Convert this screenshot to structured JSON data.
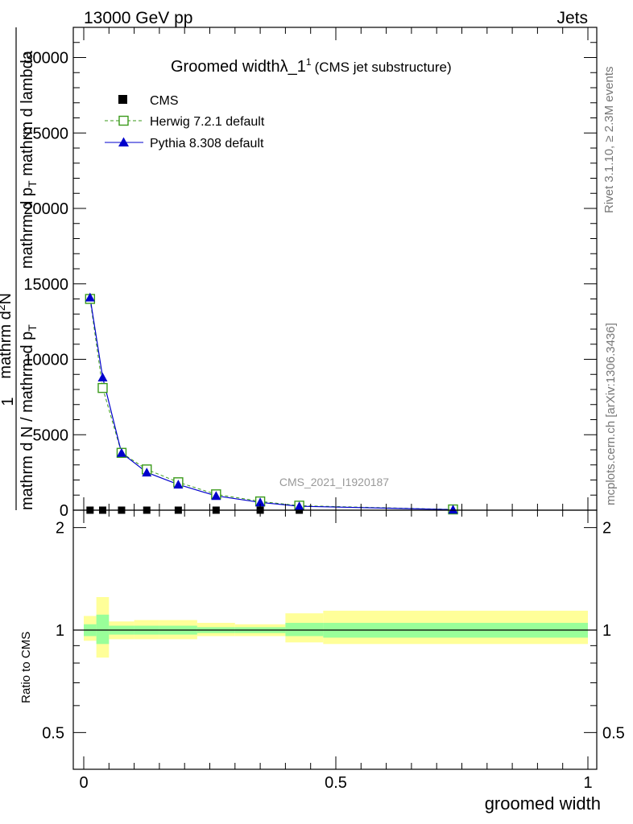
{
  "header": {
    "energy_label": "13000 GeV pp",
    "process_label": "Jets"
  },
  "side_labels": {
    "rivet": "Rivet 3.1.10, ≥ 2.3M events",
    "mcplots": "mcplots.cern.ch [arXiv:1306.3436]"
  },
  "colors": {
    "cms": "#000000",
    "herwig": "#3a9a1a",
    "pythia": "#0000cc",
    "band_outer": "#ffff99",
    "band_inner": "#99ff99",
    "watermark": "#999999"
  },
  "chart_data": [
    {
      "type": "line",
      "title_main": "Groomed widthλ_1",
      "title_sup": "1",
      "title_sub": "(CMS jet substructure)",
      "ylabel": "1 / mathrm d N / mathrm d p_T   mathrm d^2N / mathrm d p_T mathrm d lambda",
      "ylabel_parts": {
        "num1": "1",
        "den1": "mathrm d N / mathrm d p",
        "den1_sub": "T",
        "num2": "mathrm d",
        "num2_sup": "2",
        "num2_tail": "N",
        "den2": "mathrm d p",
        "den2_sub": "T",
        "den2_tail": " mathrm d lambda"
      },
      "watermark": "CMS_2021_I1920187",
      "xlim": [
        0,
        1
      ],
      "ylim": [
        0,
        32000
      ],
      "yticks": [
        0,
        5000,
        10000,
        15000,
        20000,
        25000,
        30000
      ],
      "ytick_labels": [
        "0",
        "5000",
        "10000",
        "15000",
        "20000",
        "25000",
        "30000"
      ],
      "legend_position": "top-left",
      "series": [
        {
          "name": "CMS",
          "marker": "square",
          "x": [
            0.0125,
            0.0375,
            0.075,
            0.125,
            0.1875,
            0.2625,
            0.35,
            0.4275,
            0.7325
          ],
          "y": [
            0,
            0,
            0,
            0,
            0,
            0,
            0,
            0,
            0
          ]
        },
        {
          "name": "Herwig 7.2.1 default",
          "marker": "open-square",
          "style": "dashed",
          "x": [
            0.0125,
            0.0375,
            0.075,
            0.125,
            0.1875,
            0.2625,
            0.35,
            0.4275,
            0.7325
          ],
          "y": [
            14000,
            8100,
            3800,
            2700,
            1850,
            1050,
            580,
            300,
            50
          ]
        },
        {
          "name": "Pythia 8.308 default",
          "marker": "triangle",
          "style": "solid",
          "x": [
            0.0125,
            0.0375,
            0.075,
            0.125,
            0.1875,
            0.2625,
            0.35,
            0.4275,
            0.7325
          ],
          "y": [
            14100,
            8800,
            3800,
            2500,
            1700,
            950,
            520,
            260,
            40
          ]
        }
      ]
    },
    {
      "type": "area",
      "ylabel": "Ratio to CMS",
      "xlabel": "groomed width",
      "xlim": [
        0,
        1
      ],
      "ylim": [
        0.39,
        2.25
      ],
      "yticks": [
        0.5,
        1,
        2
      ],
      "ytick_labels": [
        "0.5",
        "1",
        "2"
      ],
      "xticks": [
        0,
        0.5,
        1
      ],
      "xtick_labels": [
        "0",
        "0.5",
        "1"
      ],
      "bins": [
        {
          "x0": 0.0,
          "x1": 0.025,
          "inner": [
            0.96,
            1.04
          ],
          "outer": [
            0.93,
            1.1
          ]
        },
        {
          "x0": 0.025,
          "x1": 0.05,
          "inner": [
            0.91,
            1.11
          ],
          "outer": [
            0.83,
            1.25
          ]
        },
        {
          "x0": 0.05,
          "x1": 0.1,
          "inner": [
            0.97,
            1.03
          ],
          "outer": [
            0.94,
            1.06
          ]
        },
        {
          "x0": 0.1,
          "x1": 0.15,
          "inner": [
            0.97,
            1.03
          ],
          "outer": [
            0.94,
            1.07
          ]
        },
        {
          "x0": 0.15,
          "x1": 0.225,
          "inner": [
            0.97,
            1.03
          ],
          "outer": [
            0.94,
            1.07
          ]
        },
        {
          "x0": 0.225,
          "x1": 0.3,
          "inner": [
            0.98,
            1.02
          ],
          "outer": [
            0.96,
            1.05
          ]
        },
        {
          "x0": 0.3,
          "x1": 0.4,
          "inner": [
            0.98,
            1.02
          ],
          "outer": [
            0.96,
            1.04
          ]
        },
        {
          "x0": 0.4,
          "x1": 0.475,
          "inner": [
            0.96,
            1.05
          ],
          "outer": [
            0.92,
            1.12
          ]
        },
        {
          "x0": 0.475,
          "x1": 1.0,
          "inner": [
            0.95,
            1.05
          ],
          "outer": [
            0.91,
            1.14
          ]
        }
      ]
    }
  ]
}
